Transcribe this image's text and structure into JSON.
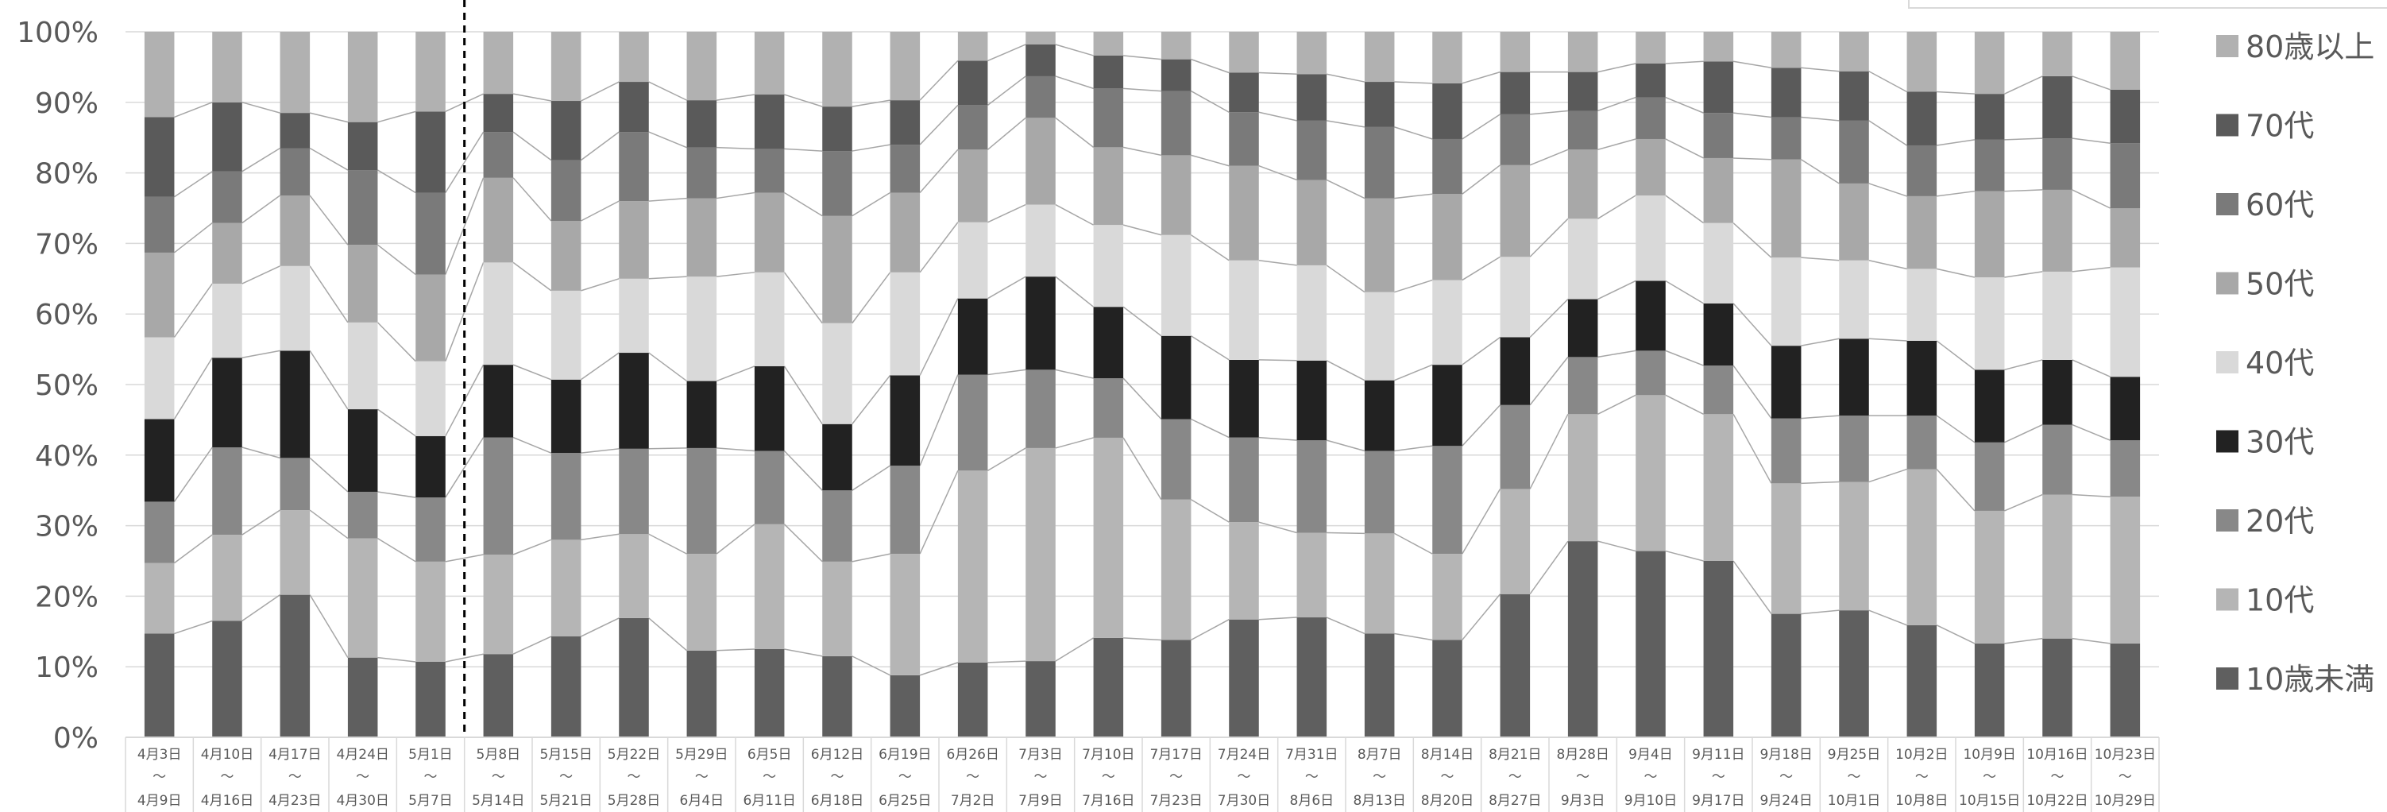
{
  "chart_data": {
    "type": "bar",
    "stacked": true,
    "percent_stacked": true,
    "title": "",
    "xlabel": "",
    "ylabel": "",
    "ylim": [
      0,
      100
    ],
    "y_ticks": [
      "0%",
      "10%",
      "20%",
      "30%",
      "40%",
      "50%",
      "60%",
      "70%",
      "80%",
      "90%",
      "100%"
    ],
    "grid": true,
    "legend_position": "right",
    "categories": [
      {
        "top": "4月3日",
        "mid": "～",
        "bottom": "4月9日"
      },
      {
        "top": "4月10日",
        "mid": "～",
        "bottom": "4月16日"
      },
      {
        "top": "4月17日",
        "mid": "～",
        "bottom": "4月23日"
      },
      {
        "top": "4月24日",
        "mid": "～",
        "bottom": "4月30日"
      },
      {
        "top": "5月1日",
        "mid": "～",
        "bottom": "5月7日"
      },
      {
        "top": "5月8日",
        "mid": "～",
        "bottom": "5月14日"
      },
      {
        "top": "5月15日",
        "mid": "～",
        "bottom": "5月21日"
      },
      {
        "top": "5月22日",
        "mid": "～",
        "bottom": "5月28日"
      },
      {
        "top": "5月29日",
        "mid": "～",
        "bottom": "6月4日"
      },
      {
        "top": "6月5日",
        "mid": "～",
        "bottom": "6月11日"
      },
      {
        "top": "6月12日",
        "mid": "～",
        "bottom": "6月18日"
      },
      {
        "top": "6月19日",
        "mid": "～",
        "bottom": "6月25日"
      },
      {
        "top": "6月26日",
        "mid": "～",
        "bottom": "7月2日"
      },
      {
        "top": "7月3日",
        "mid": "～",
        "bottom": "7月9日"
      },
      {
        "top": "7月10日",
        "mid": "～",
        "bottom": "7月16日"
      },
      {
        "top": "7月17日",
        "mid": "～",
        "bottom": "7月23日"
      },
      {
        "top": "7月24日",
        "mid": "～",
        "bottom": "7月30日"
      },
      {
        "top": "7月31日",
        "mid": "～",
        "bottom": "8月6日"
      },
      {
        "top": "8月7日",
        "mid": "～",
        "bottom": "8月13日"
      },
      {
        "top": "8月14日",
        "mid": "～",
        "bottom": "8月20日"
      },
      {
        "top": "8月21日",
        "mid": "～",
        "bottom": "8月27日"
      },
      {
        "top": "8月28日",
        "mid": "～",
        "bottom": "9月3日"
      },
      {
        "top": "9月4日",
        "mid": "～",
        "bottom": "9月10日"
      },
      {
        "top": "9月11日",
        "mid": "～",
        "bottom": "9月17日"
      },
      {
        "top": "9月18日",
        "mid": "～",
        "bottom": "9月24日"
      },
      {
        "top": "9月25日",
        "mid": "～",
        "bottom": "10月1日"
      },
      {
        "top": "10月2日",
        "mid": "～",
        "bottom": "10月8日"
      },
      {
        "top": "10月9日",
        "mid": "～",
        "bottom": "10月15日"
      },
      {
        "top": "10月16日",
        "mid": "～",
        "bottom": "10月22日"
      },
      {
        "top": "10月23日",
        "mid": "～",
        "bottom": "10月29日"
      }
    ],
    "series": [
      {
        "name": "10歳未満",
        "color": "#5f5f5f",
        "values": [
          14.7,
          16.5,
          20.2,
          11.3,
          10.7,
          11.8,
          14.3,
          16.9,
          12.3,
          12.5,
          11.5,
          8.8,
          10.6,
          10.8,
          14.2,
          13.8,
          16.7,
          17.0,
          14.7,
          13.8,
          20.3,
          27.8,
          26.4,
          25.0,
          17.5,
          18.0,
          15.9,
          13.3,
          14.0,
          13.3
        ]
      },
      {
        "name": "10代",
        "color": "#b5b5b5",
        "values": [
          10.0,
          12.2,
          12.0,
          16.9,
          14.2,
          14.1,
          13.7,
          11.9,
          13.7,
          17.7,
          13.4,
          17.2,
          27.2,
          30.2,
          28.6,
          19.9,
          13.8,
          12.0,
          14.2,
          12.2,
          14.9,
          18.0,
          22.1,
          20.8,
          18.5,
          18.2,
          22.1,
          18.8,
          20.4,
          20.8
        ]
      },
      {
        "name": "20代",
        "color": "#888888",
        "values": [
          8.7,
          12.4,
          7.4,
          6.6,
          9.1,
          16.6,
          12.3,
          12.1,
          15.0,
          10.4,
          10.1,
          12.5,
          13.6,
          11.1,
          8.5,
          11.4,
          12.0,
          13.1,
          11.7,
          15.3,
          11.9,
          8.1,
          6.3,
          6.9,
          9.2,
          9.4,
          7.6,
          9.7,
          9.9,
          8.0
        ]
      },
      {
        "name": "30代",
        "color": "#222222",
        "values": [
          11.7,
          12.7,
          15.2,
          11.7,
          8.7,
          10.3,
          10.4,
          13.6,
          9.5,
          12.0,
          9.4,
          12.8,
          10.8,
          13.2,
          10.2,
          11.8,
          11.0,
          11.3,
          10.0,
          11.5,
          9.6,
          8.2,
          9.9,
          8.8,
          10.3,
          10.9,
          10.6,
          10.3,
          9.2,
          9.0
        ]
      },
      {
        "name": "40代",
        "color": "#d9d9d9",
        "values": [
          11.6,
          10.5,
          12.0,
          12.3,
          10.6,
          14.5,
          12.6,
          10.5,
          14.8,
          13.3,
          14.3,
          14.6,
          10.8,
          10.2,
          11.7,
          14.3,
          14.1,
          13.5,
          12.5,
          12.0,
          11.4,
          11.4,
          12.1,
          11.4,
          12.5,
          11.1,
          10.2,
          13.1,
          12.5,
          15.5
        ]
      },
      {
        "name": "50代",
        "color": "#a8a8a8",
        "values": [
          12.0,
          8.6,
          10.0,
          11.0,
          12.3,
          12.0,
          9.9,
          11.0,
          11.1,
          11.3,
          15.2,
          11.3,
          10.3,
          12.3,
          11.1,
          11.3,
          13.4,
          12.1,
          13.3,
          12.2,
          13.0,
          9.8,
          8.0,
          9.2,
          13.9,
          10.9,
          10.3,
          12.2,
          11.6,
          8.4
        ]
      },
      {
        "name": "60代",
        "color": "#7a7a7a",
        "values": [
          7.9,
          7.3,
          6.7,
          10.6,
          11.6,
          6.5,
          8.6,
          9.8,
          7.2,
          6.2,
          9.2,
          6.8,
          6.3,
          5.9,
          8.4,
          9.1,
          7.6,
          8.4,
          10.1,
          7.8,
          7.2,
          5.5,
          5.9,
          6.4,
          6.0,
          8.9,
          7.2,
          7.3,
          7.3,
          9.2
        ]
      },
      {
        "name": "70代",
        "color": "#5a5a5a",
        "values": [
          11.3,
          9.8,
          5.0,
          6.8,
          11.5,
          5.4,
          8.4,
          7.1,
          6.7,
          7.7,
          6.3,
          6.3,
          6.3,
          4.5,
          4.7,
          4.5,
          5.6,
          6.6,
          6.4,
          7.9,
          6.0,
          5.5,
          4.8,
          7.3,
          7.0,
          7.0,
          7.6,
          6.5,
          8.8,
          7.6
        ]
      },
      {
        "name": "80歳以上",
        "color": "#b1b1b1",
        "values": [
          12.1,
          10.0,
          11.5,
          12.8,
          11.3,
          8.8,
          9.8,
          7.1,
          9.7,
          8.9,
          10.6,
          9.7,
          4.1,
          1.8,
          3.4,
          3.9,
          5.8,
          6.0,
          7.1,
          7.3,
          5.7,
          5.7,
          4.5,
          4.2,
          5.1,
          5.6,
          8.5,
          8.8,
          6.3,
          8.2
        ]
      }
    ],
    "divider_after_index": 4
  }
}
